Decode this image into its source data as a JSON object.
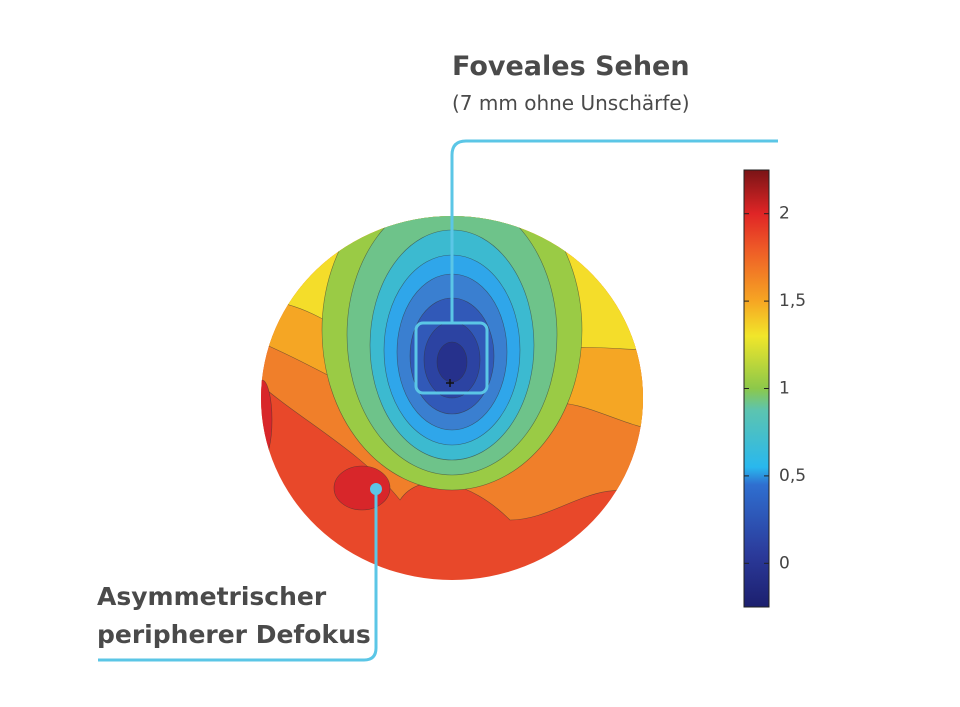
{
  "annotations": [
    {
      "title": "Foveales Sehen",
      "subtitle": "(7 mm ohne Unschärfe)"
    },
    {
      "lines": [
        "Asymmetrischer",
        "peripherer Defokus"
      ]
    }
  ],
  "colorbar": {
    "range": [
      -0.25,
      2.25
    ],
    "ticks": [
      0,
      {
        "value": 0.5,
        "label": "0,5"
      },
      1,
      {
        "value": 1.5,
        "label": "1,5"
      },
      2
    ]
  }
}
